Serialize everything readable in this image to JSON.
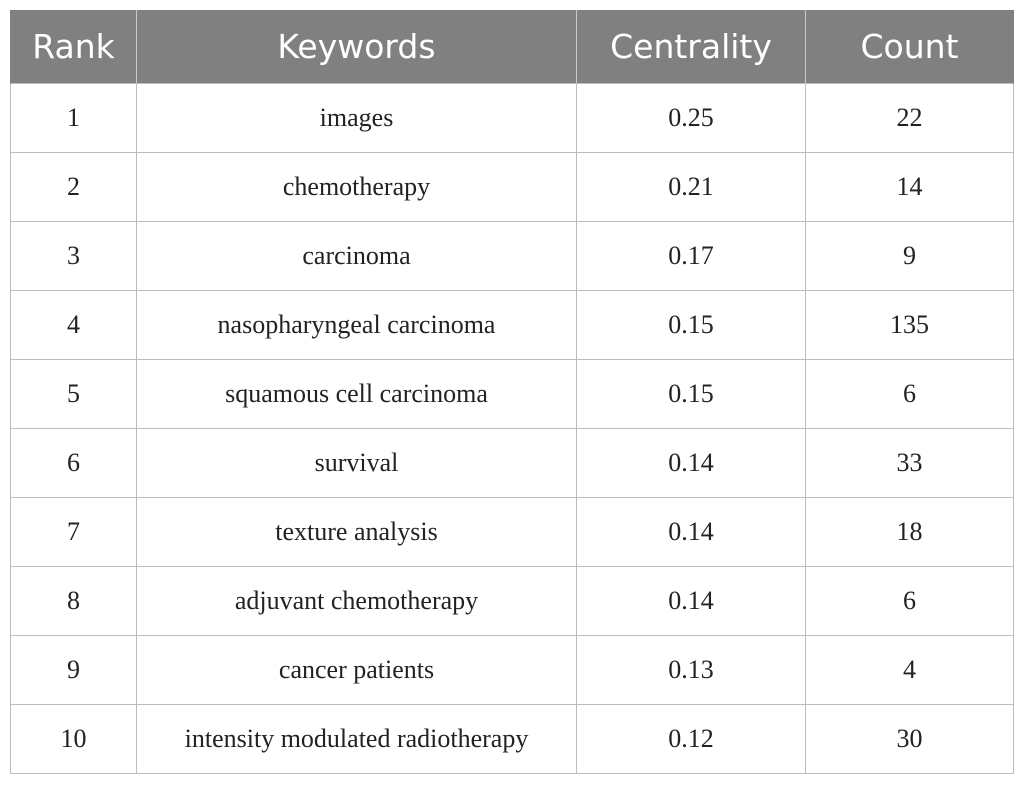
{
  "table": {
    "headers": [
      "Rank",
      "Keywords",
      "Centrality",
      "Count"
    ],
    "rows": [
      {
        "rank": "1",
        "keyword": "images",
        "centrality": "0.25",
        "count": "22"
      },
      {
        "rank": "2",
        "keyword": "chemotherapy",
        "centrality": "0.21",
        "count": "14"
      },
      {
        "rank": "3",
        "keyword": "carcinoma",
        "centrality": "0.17",
        "count": "9"
      },
      {
        "rank": "4",
        "keyword": "nasopharyngeal carcinoma",
        "centrality": "0.15",
        "count": "135"
      },
      {
        "rank": "5",
        "keyword": "squamous cell carcinoma",
        "centrality": "0.15",
        "count": "6"
      },
      {
        "rank": "6",
        "keyword": "survival",
        "centrality": "0.14",
        "count": "33"
      },
      {
        "rank": "7",
        "keyword": "texture analysis",
        "centrality": "0.14",
        "count": "18"
      },
      {
        "rank": "8",
        "keyword": "adjuvant chemotherapy",
        "centrality": "0.14",
        "count": "6"
      },
      {
        "rank": "9",
        "keyword": "cancer patients",
        "centrality": "0.13",
        "count": "4"
      },
      {
        "rank": "10",
        "keyword": "intensity modulated radiotherapy",
        "centrality": "0.12",
        "count": "30"
      }
    ]
  },
  "colors": {
    "header_background": "#808080",
    "header_text": "#ffffff",
    "grid_line": "#bdbdbd"
  }
}
